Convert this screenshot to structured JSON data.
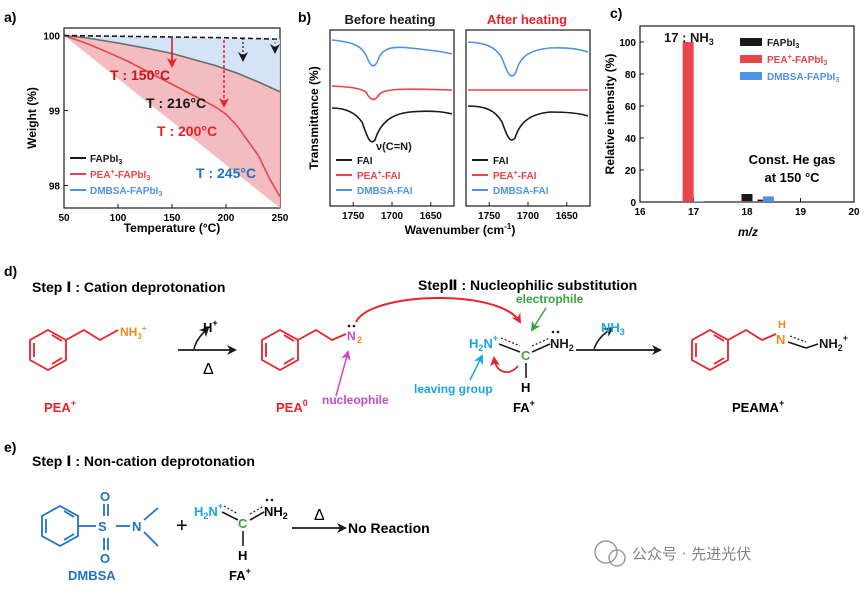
{
  "panel_labels": {
    "a": "a)",
    "b": "b)",
    "c": "c)",
    "d": "d)",
    "e": "e)"
  },
  "colors": {
    "black": "#1a1a1a",
    "red": "#e8454b",
    "pink_fill": "#f2b8bd",
    "blue": "#4f92e8",
    "blue_fill": "#cfe0f4",
    "dark_red": "#c8161d",
    "chem_red": "#e8222a",
    "orange": "#f08a1a",
    "purple": "#c94ac8",
    "green": "#3aa33a",
    "cyan": "#19a6e0",
    "dblue": "#1f73c4"
  },
  "chart_data": [
    {
      "type": "area",
      "panel": "a",
      "xlabel": "Temperature (°C)",
      "ylabel": "Weight (%)",
      "xlim": [
        50,
        250
      ],
      "ylim": [
        97.7,
        100.1
      ],
      "xticks": [
        50,
        100,
        150,
        200,
        250
      ],
      "yticks": [
        98,
        99,
        100
      ],
      "legend_placement": "bottom-left",
      "series": [
        {
          "name": "FAPbI3",
          "name_base": "FAPbI",
          "name_sub": "3",
          "color": "#6b6b6b",
          "x": [
            50,
            70,
            100,
            130,
            150,
            170,
            190,
            210,
            230,
            250
          ],
          "values": [
            100,
            99.97,
            99.9,
            99.82,
            99.76,
            99.68,
            99.6,
            99.5,
            99.38,
            99.25
          ]
        },
        {
          "name": "PEA+-FAPbI3",
          "name_pre": "PEA",
          "name_sup": "+",
          "name_mid": "-FAPbI",
          "name_sub": "3",
          "color": "#e8454b",
          "x": [
            50,
            70,
            90,
            110,
            130,
            150,
            170,
            190,
            200,
            210,
            220,
            230,
            240,
            250
          ],
          "values": [
            100,
            99.9,
            99.78,
            99.65,
            99.5,
            99.35,
            99.2,
            99.05,
            98.95,
            98.8,
            98.6,
            98.4,
            98.1,
            97.85
          ]
        },
        {
          "name": "DMBSA-FAPbI3",
          "name_base": "DMBSA-FAPbI",
          "name_sub": "3",
          "color": "#4f92e8",
          "x": [
            50,
            100,
            150,
            200,
            250
          ],
          "values": [
            100,
            99.99,
            99.98,
            99.97,
            99.95
          ]
        }
      ],
      "annotations": [
        {
          "text": "T : 150°C",
          "color": "#c8161d"
        },
        {
          "text": "T : 216°C",
          "color": "#1a1a1a"
        },
        {
          "text": "T : 200°C",
          "color": "#e8222a"
        },
        {
          "text": "T : 245°C",
          "color": "#1f73c4"
        }
      ]
    },
    {
      "type": "line",
      "panel": "b",
      "titles": [
        "Before heating",
        "After heating"
      ],
      "xlabel": "Wavenumber (cm⁻¹)",
      "xlabel_base": "Wavenumber (cm",
      "xlabel_sup": "-1",
      "xlabel_end": ")",
      "ylabel": "Transmittance (%)",
      "xticks": [
        1750,
        1700,
        1650
      ],
      "xlim": [
        1780,
        1620
      ],
      "annotation": "ν(C=N)",
      "legend": [
        {
          "name": "FAI",
          "color": "#1a1a1a"
        },
        {
          "name": "PEA+-FAI",
          "pre": "PEA",
          "sup": "+",
          "post": "-FAI",
          "color": "#e8454b"
        },
        {
          "name": "DMBSA-FAI",
          "color": "#4f92e8"
        }
      ]
    },
    {
      "type": "bar",
      "panel": "c",
      "xlabel": "m/z",
      "ylabel": "Relative intensity (%)",
      "xlim": [
        16,
        20
      ],
      "ylim": [
        0,
        110
      ],
      "xticks": [
        16,
        17,
        18,
        19,
        20
      ],
      "yticks": [
        0,
        20,
        40,
        60,
        80,
        100
      ],
      "annotation_top": "17 : NH3",
      "annotation_top_base": "17 : NH",
      "annotation_top_sub": "3",
      "annotation_right": [
        "Const. He gas",
        "at 150 °C"
      ],
      "series": [
        {
          "name": "FAPbI3",
          "base": "FAPbI",
          "sub": "3",
          "color": "#1a1a1a",
          "x": [
            17,
            18,
            18.3
          ],
          "values": [
            0.3,
            5,
            1.5
          ]
        },
        {
          "name": "PEA+-FAPbI3",
          "pre": "PEA",
          "sup": "+",
          "mid": "-FAPbI",
          "sub": "3",
          "color": "#e8454b",
          "x": [
            16.9,
            17.9,
            18.2
          ],
          "values": [
            100,
            0.5,
            0.6
          ]
        },
        {
          "name": "DMBSA-FAPbI3",
          "base": "DMBSA-FAPbI",
          "sub": "3",
          "color": "#4f92e8",
          "x": [
            17.1,
            18.1,
            18.4
          ],
          "values": [
            0.3,
            0.4,
            3.5
          ]
        }
      ]
    }
  ],
  "panel_d": {
    "step1": "Step Ⅰ : Cation deprotonation",
    "step2": "StepⅡ : Nucleophilic substitution",
    "pea_plus": "PEA+",
    "pea_plus_base": "PEA",
    "pea_plus_sup": "+",
    "pea0": "PEA0",
    "pea0_base": "PEA",
    "pea0_sup": "0",
    "nh3plus_base": "NH",
    "nh3plus_sub": "3",
    "nh3plus_sup": "+",
    "hplus_base": "H",
    "hplus_sup": "+",
    "delta": "Δ",
    "nh2": "NH",
    "nh2_sub": "2",
    "nucleophile": "nucleophile",
    "electrophile": "electrophile",
    "leaving_group": "leaving group",
    "h2n_base": "H",
    "h2n_sub": "2",
    "h2n_n": "N",
    "h2n_sup": "+",
    "c": "C",
    "h": "H",
    "nh3_base": "NH",
    "nh3_sub": "3",
    "fa_plus_base": "FA",
    "fa_plus_sup": "+",
    "peama_base": "PEAMA",
    "peama_sup": "+",
    "product_h": "H",
    "product_n": "N",
    "product_nh2_base": "NH",
    "product_nh2_sub": "2",
    "product_nh2_sup": "+"
  },
  "panel_e": {
    "step": "Step Ⅰ : Non-cation deprotonation",
    "o": "O",
    "s": "S",
    "n": "N",
    "plus": "+",
    "delta": "Δ",
    "no_reaction": "No Reaction",
    "dmbsa": "DMBSA",
    "watermark": "公众号 · 先进光伏"
  }
}
